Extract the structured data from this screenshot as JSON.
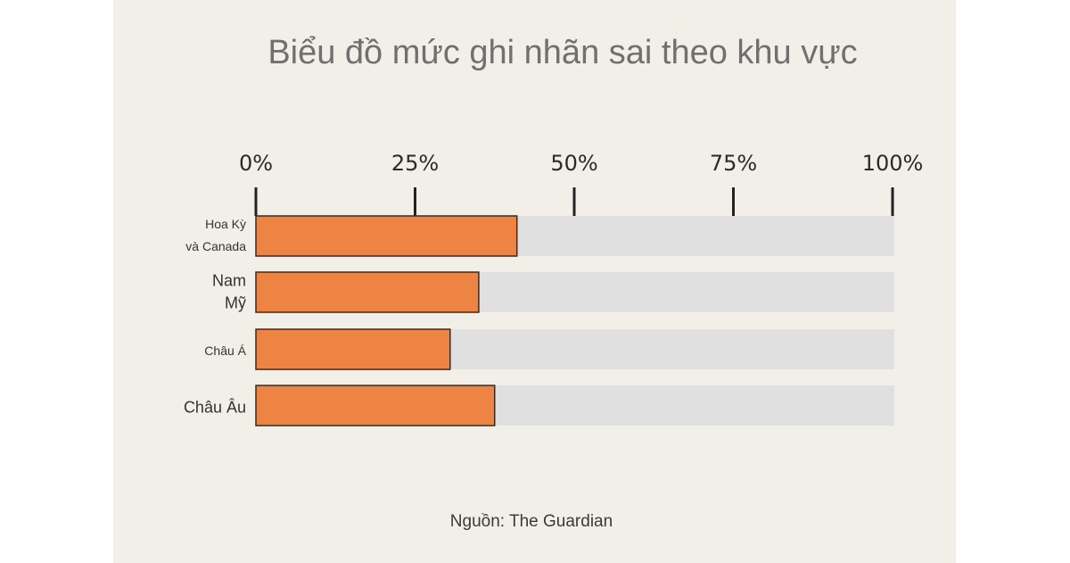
{
  "chart_data": {
    "type": "bar",
    "orientation": "horizontal",
    "title": "Biểu đồ mức ghi nhãn sai theo khu vực",
    "categories": [
      [
        "Hoa Kỳ",
        "và Canada"
      ],
      [
        "Nam",
        "Mỹ"
      ],
      [
        "Châu Á"
      ],
      [
        "Châu Âu"
      ]
    ],
    "values": [
      41,
      35,
      30.5,
      37.5
    ],
    "xlim": [
      0,
      100
    ],
    "ticks": [
      0,
      25,
      50,
      75,
      100
    ],
    "tick_labels": [
      "0%",
      "25%",
      "50%",
      "75%",
      "100%"
    ],
    "axis_position": "top",
    "grid": false,
    "legend": "none"
  },
  "source": "Nguồn: The Guardian",
  "colors": {
    "bar": "#ee8444",
    "track": "#e0e0e0",
    "background": "#f2efe9",
    "axis": "#222222"
  }
}
